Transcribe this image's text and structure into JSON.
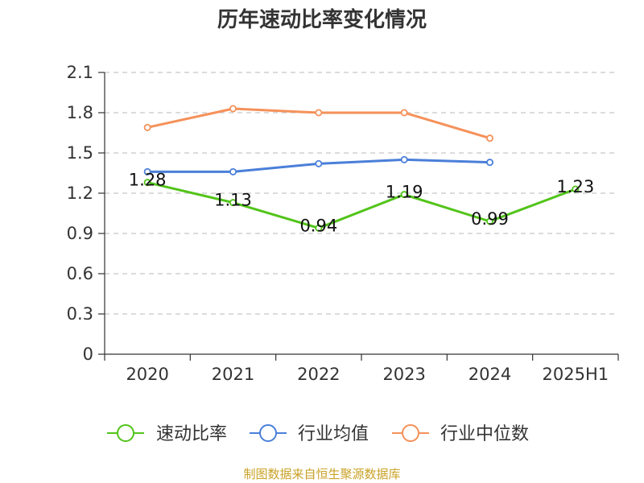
{
  "title": "历年速动比率变化情况",
  "source": "制图数据来自恒生聚源数据库",
  "chart_data": {
    "type": "line",
    "title": "历年速动比率变化情况",
    "categories": [
      "2020",
      "2021",
      "2022",
      "2023",
      "2024",
      "2025H1"
    ],
    "y_ticks": [
      "0",
      "0.3",
      "0.6",
      "0.9",
      "1.2",
      "1.5",
      "1.8",
      "2.1"
    ],
    "ylim": [
      0,
      2.1
    ],
    "grid": true,
    "legend_position": "bottom",
    "series": [
      {
        "name": "速动比率",
        "color": "#52c41a",
        "values": [
          1.28,
          1.13,
          0.94,
          1.19,
          0.99,
          1.23
        ],
        "labels": [
          "1.28",
          "1.13",
          "0.94",
          "1.19",
          "0.99",
          "1.23"
        ]
      },
      {
        "name": "行业均值",
        "color": "#4a7fd9",
        "values": [
          1.36,
          1.36,
          1.42,
          1.45,
          1.43,
          null
        ]
      },
      {
        "name": "行业中位数",
        "color": "#f5915a",
        "values": [
          1.69,
          1.83,
          1.8,
          1.8,
          1.61,
          null
        ]
      }
    ]
  }
}
